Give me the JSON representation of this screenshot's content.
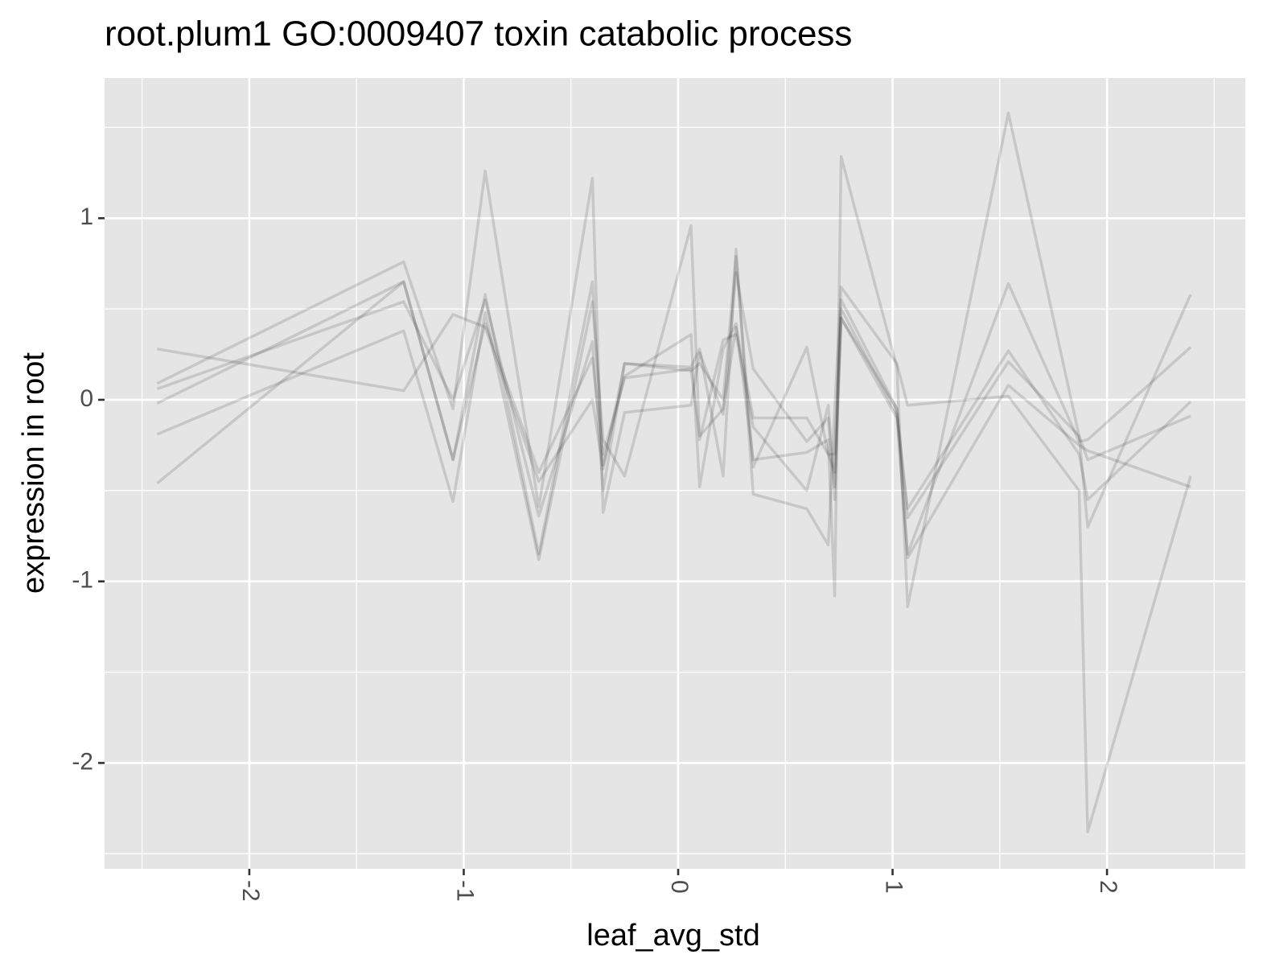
{
  "chart_data": {
    "type": "line",
    "title": "root.plum1 GO:0009407 toxin catabolic process",
    "x_label": "leaf_avg_std",
    "y_label": "expression in root",
    "x": [
      -2.43,
      -1.28,
      -1.05,
      -0.9,
      -0.65,
      -0.4,
      -0.35,
      -0.25,
      0.06,
      0.1,
      0.21,
      0.27,
      0.35,
      0.6,
      0.7,
      0.73,
      0.76,
      1.02,
      1.07,
      1.54,
      1.87,
      1.91,
      2.39
    ],
    "color": "#000000",
    "series": [
      {
        "values": [
          0.28,
          0.05,
          0.47,
          0.4,
          -0.45,
          0.0,
          -0.38,
          0.2,
          0.18,
          0.28,
          -0.42,
          0.83,
          -0.52,
          -0.6,
          -0.8,
          -0.05,
          0.62,
          0.2,
          -0.03,
          0.02,
          -0.5,
          -2.38,
          -0.42
        ]
      },
      {
        "values": [
          -0.46,
          0.65,
          -0.33,
          0.58,
          -0.85,
          0.65,
          -0.36,
          0.13,
          0.36,
          -0.48,
          0.28,
          0.42,
          -0.33,
          -0.29,
          -0.22,
          -1.08,
          1.34,
          0.18,
          -1.14,
          1.58,
          -0.2,
          -0.7,
          0.58
        ]
      },
      {
        "values": [
          0.09,
          0.76,
          -0.05,
          1.26,
          -0.59,
          1.22,
          -0.62,
          -0.07,
          -0.03,
          0.26,
          -0.08,
          0.7,
          0.17,
          -0.23,
          -0.1,
          -0.55,
          0.45,
          -0.1,
          -0.85,
          0.64,
          -0.23,
          -0.22,
          0.29
        ]
      },
      {
        "values": [
          -0.19,
          0.38,
          -0.56,
          0.48,
          -0.88,
          0.54,
          -0.22,
          -0.42,
          0.96,
          -0.22,
          0.33,
          0.36,
          -0.15,
          -0.5,
          -0.03,
          -0.48,
          0.5,
          -0.08,
          -0.6,
          0.27,
          -0.3,
          -0.55,
          -0.01
        ]
      },
      {
        "values": [
          0.06,
          0.54,
          0.0,
          0.55,
          -0.64,
          0.32,
          -0.5,
          0.2,
          0.16,
          0.2,
          0.0,
          0.79,
          -0.37,
          0.29,
          -0.3,
          -0.3,
          0.55,
          -0.05,
          -0.65,
          0.21,
          -0.2,
          -0.33,
          -0.09
        ]
      },
      {
        "values": [
          -0.02,
          0.65,
          -0.33,
          0.42,
          -0.4,
          0.23,
          -0.3,
          0.12,
          0.17,
          -0.2,
          -0.05,
          0.4,
          -0.1,
          -0.1,
          -0.3,
          -0.4,
          0.45,
          -0.05,
          -0.87,
          0.08,
          -0.25,
          -0.28,
          -0.48
        ]
      }
    ],
    "xlim": [
      -2.675,
      2.645
    ],
    "xticks": [
      -2,
      -1,
      0,
      1,
      2
    ],
    "ylim": [
      -2.583,
      1.772
    ],
    "yticks": [
      -2,
      -1,
      0,
      1
    ],
    "grid": true
  }
}
